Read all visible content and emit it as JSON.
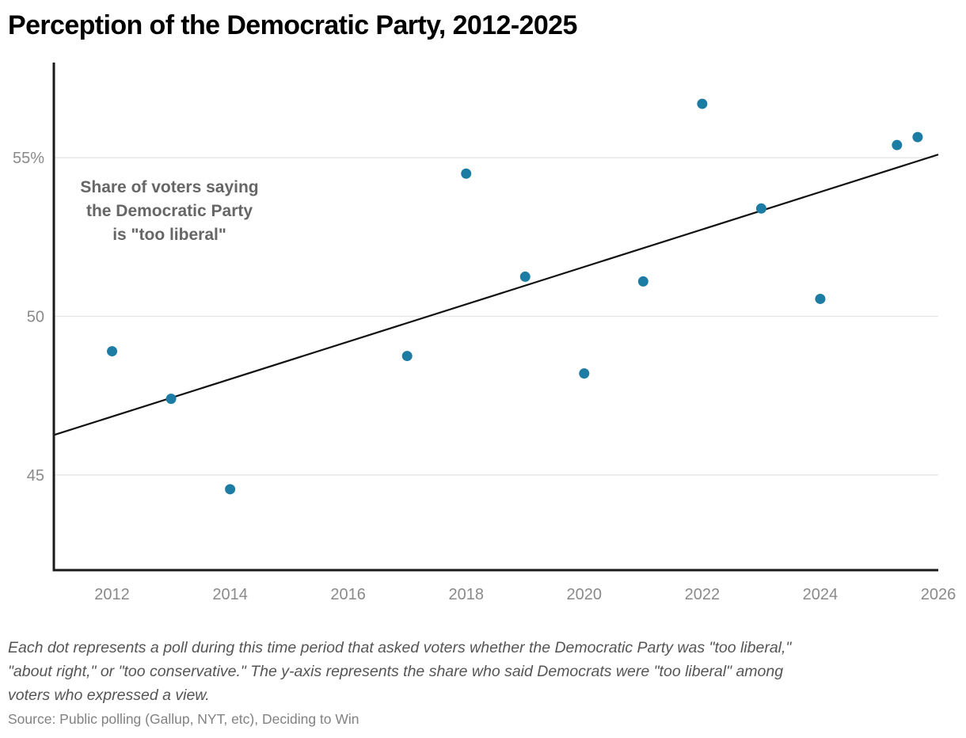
{
  "chart": {
    "title": "Perception of the Democratic Party, 2012-2025",
    "annotation": {
      "lines": [
        "Share of voters saying",
        "the Democratic Party",
        "is \"too liberal\""
      ]
    },
    "footnote_lines": [
      "Each dot represents a poll during this time period that asked voters whether the Democratic Party was \"too liberal,\"",
      "\"about right,\" or \"too conservative.\" The y-axis represents the share who said Democrats were \"too liberal\" among",
      "voters who expressed a view."
    ],
    "source": "Source: Public polling (Gallup, NYT, etc), Deciding to Win"
  },
  "chart_data": {
    "type": "scatter",
    "title": "Perception of the Democratic Party, 2012-2025",
    "xlabel": "",
    "ylabel": "Share of voters saying the Democratic Party is \"too liberal\" (%)",
    "xlim": [
      2011,
      2026
    ],
    "ylim": [
      42,
      58
    ],
    "grid": true,
    "legend": false,
    "points": [
      {
        "x": 2012,
        "y": 48.9
      },
      {
        "x": 2013,
        "y": 47.4
      },
      {
        "x": 2014,
        "y": 44.55
      },
      {
        "x": 2017,
        "y": 48.75
      },
      {
        "x": 2018,
        "y": 54.5
      },
      {
        "x": 2019,
        "y": 51.25
      },
      {
        "x": 2020,
        "y": 48.2
      },
      {
        "x": 2021,
        "y": 51.1
      },
      {
        "x": 2022,
        "y": 56.7
      },
      {
        "x": 2023,
        "y": 53.4
      },
      {
        "x": 2024,
        "y": 50.55
      },
      {
        "x": 2025.3,
        "y": 55.4
      },
      {
        "x": 2025.65,
        "y": 55.65
      }
    ],
    "trend_line": {
      "x1": 2011,
      "y1": 46.25,
      "x2": 2026,
      "y2": 55.1
    },
    "x_ticks": [
      {
        "value": 2012,
        "label": "2012"
      },
      {
        "value": 2014,
        "label": "2014"
      },
      {
        "value": 2016,
        "label": "2016"
      },
      {
        "value": 2018,
        "label": "2018"
      },
      {
        "value": 2020,
        "label": "2020"
      },
      {
        "value": 2022,
        "label": "2022"
      },
      {
        "value": 2024,
        "label": "2024"
      },
      {
        "value": 2026,
        "label": "2026"
      }
    ],
    "y_ticks": [
      {
        "value": 45,
        "label": "45"
      },
      {
        "value": 50,
        "label": "50"
      },
      {
        "value": 55,
        "label": "55%"
      }
    ],
    "colors": {
      "point": "#1d7ca3",
      "trend": "#111111",
      "axis": "#1a1a1a",
      "grid": "#e6e6e6",
      "tick_label": "#8a8a8a"
    }
  }
}
